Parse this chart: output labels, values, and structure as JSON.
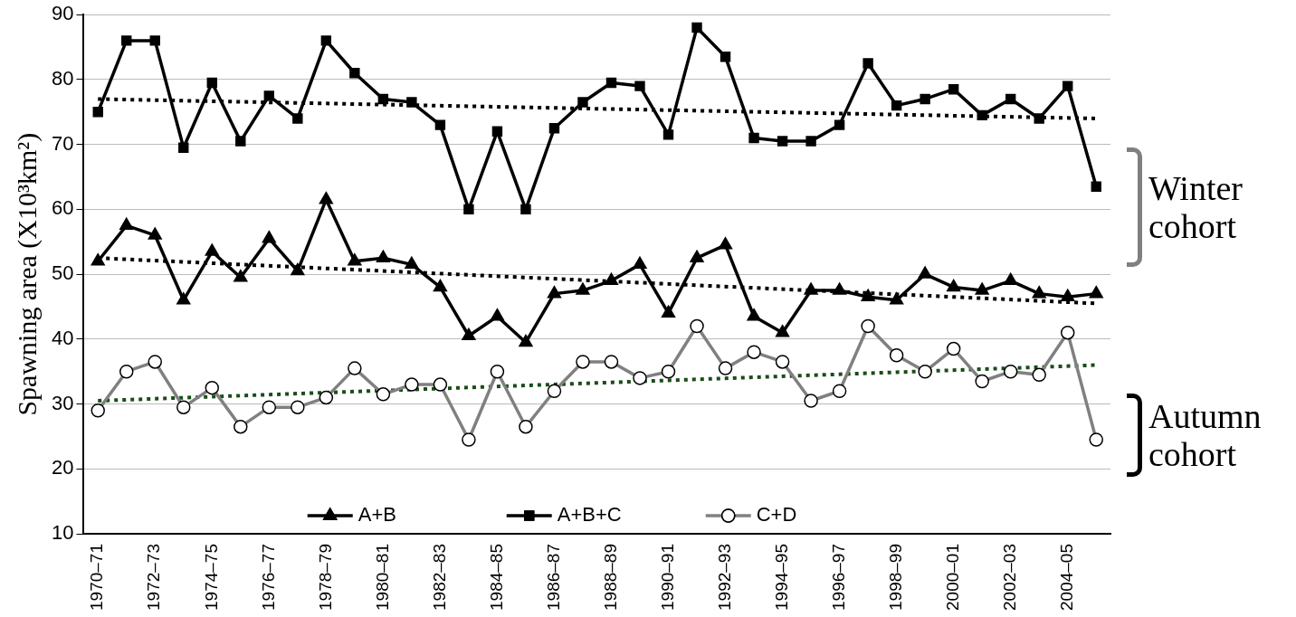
{
  "chart_data": {
    "type": "line",
    "ylabel": "Spawning area (X10³km²)",
    "categories": [
      "1970–71",
      null,
      "1972–73",
      null,
      "1974–75",
      null,
      "1976–77",
      null,
      "1978–79",
      null,
      "1980–81",
      null,
      "1982–83",
      null,
      "1984–85",
      null,
      "1986–87",
      null,
      "1988–89",
      null,
      "1990–91",
      null,
      "1992–93",
      null,
      "1994–95",
      null,
      "1996–97",
      null,
      "1998–99",
      null,
      "2000–01",
      null,
      "2002–03",
      null,
      "2004–05",
      null
    ],
    "ylim": [
      10,
      90
    ],
    "yticks": [
      10,
      20,
      30,
      40,
      50,
      60,
      70,
      80,
      90
    ],
    "grid": "y",
    "legend": "bottom",
    "series": [
      {
        "name": "A+B",
        "color": "#000000",
        "marker": "triangle",
        "values": [
          52,
          57.5,
          56,
          46,
          53.5,
          49.5,
          55.5,
          50.5,
          61.5,
          52,
          52.5,
          51.5,
          48,
          40.5,
          43.5,
          39.5,
          47,
          47.5,
          49,
          51.5,
          44,
          52.5,
          54.5,
          43.5,
          41,
          47.5,
          47.5,
          46.5,
          46,
          50,
          48,
          47.5,
          49,
          47,
          46.5,
          47
        ]
      },
      {
        "name": "A+B+C",
        "color": "#000000",
        "marker": "square",
        "values": [
          75,
          86,
          86,
          69.5,
          79.5,
          70.5,
          77.5,
          74,
          86,
          81,
          77,
          76.5,
          73,
          60,
          72,
          60,
          72.5,
          76.5,
          79.5,
          79,
          71.5,
          88,
          83.5,
          71,
          70.5,
          70.5,
          73,
          82.5,
          76,
          77,
          78.5,
          74.5,
          77,
          74,
          79,
          63.5
        ]
      },
      {
        "name": "C+D",
        "color": "#808080",
        "marker": "circle",
        "values": [
          29,
          35,
          36.5,
          29.5,
          32.5,
          26.5,
          29.5,
          29.5,
          31,
          35.5,
          31.5,
          33,
          33,
          24.5,
          35,
          26.5,
          32,
          36.5,
          36.5,
          34,
          35,
          42,
          35.5,
          38,
          36.5,
          30.5,
          32,
          42,
          37.5,
          35,
          38.5,
          33.5,
          35,
          34.5,
          41,
          24.5
        ]
      },
      {
        "color": "#000000",
        "marker": "none",
        "line_style": "dotted",
        "values": [
          77,
          null,
          null,
          null,
          null,
          null,
          null,
          null,
          null,
          null,
          null,
          null,
          null,
          null,
          null,
          null,
          null,
          null,
          null,
          null,
          null,
          null,
          null,
          null,
          null,
          null,
          null,
          null,
          null,
          null,
          null,
          null,
          null,
          null,
          null,
          74
        ]
      },
      {
        "color": "#000000",
        "marker": "none",
        "line_style": "dotted",
        "values": [
          52.5,
          null,
          null,
          null,
          null,
          null,
          null,
          null,
          null,
          null,
          null,
          null,
          null,
          null,
          null,
          null,
          null,
          null,
          null,
          null,
          null,
          null,
          null,
          null,
          null,
          null,
          null,
          null,
          null,
          null,
          null,
          null,
          null,
          null,
          null,
          45.5
        ]
      },
      {
        "color": "#1a4d1a",
        "marker": "none",
        "line_style": "dotted",
        "values": [
          30.5,
          null,
          null,
          null,
          null,
          null,
          null,
          null,
          null,
          null,
          null,
          null,
          null,
          null,
          null,
          null,
          null,
          null,
          null,
          null,
          null,
          null,
          null,
          null,
          null,
          null,
          null,
          null,
          null,
          null,
          null,
          null,
          null,
          null,
          null,
          36
        ]
      }
    ],
    "annotations": [
      "Winter cohort",
      "Autumn cohort"
    ]
  }
}
